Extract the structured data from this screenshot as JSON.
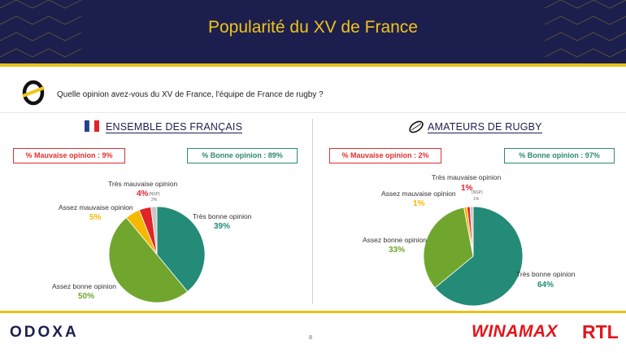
{
  "title": "Popularité du XV de France",
  "question": "Quelle opinion avez-vous du XV de France, l'équipe de France de rugby ?",
  "footer": {
    "brand": "ODOXA",
    "page": "8",
    "sponsor1": "WINAMAX",
    "sponsor2": "RTL"
  },
  "colors": {
    "navy": "#1c1f4d",
    "gold": "#e8c21a",
    "tres_bonne": "#238b77",
    "assez_bonne": "#70a62e",
    "assez_mauvaise": "#f6b800",
    "tres_mauvaise": "#e1242a",
    "nsp": "#c8c8c8"
  },
  "chart_data": [
    {
      "type": "pie",
      "title": "ENSEMBLE DES FRANÇAIS",
      "summary": {
        "mauvaise": "% Mauvaise opinion : 9%",
        "bonne": "% Bonne opinion : 89%"
      },
      "slices": [
        {
          "label": "Très bonne opinion",
          "value": 39,
          "display": "39%"
        },
        {
          "label": "Assez bonne opinion",
          "value": 50,
          "display": "50%"
        },
        {
          "label": "Assez mauvaise opinion",
          "value": 5,
          "display": "5%"
        },
        {
          "label": "Très mauvaise opinion",
          "value": 4,
          "display": "4%"
        },
        {
          "label": "(NSP)",
          "value": 2,
          "display": "2%"
        }
      ]
    },
    {
      "type": "pie",
      "title": "AMATEURS DE RUGBY",
      "summary": {
        "mauvaise": "% Mauvaise opinion : 2%",
        "bonne": "% Bonne opinion : 97%"
      },
      "slices": [
        {
          "label": "Très bonne opinion",
          "value": 64,
          "display": "64%"
        },
        {
          "label": "Assez bonne opinion",
          "value": 33,
          "display": "33%"
        },
        {
          "label": "Assez mauvaise opinion",
          "value": 1,
          "display": "1%"
        },
        {
          "label": "Très mauvaise opinion",
          "value": 1,
          "display": "1%"
        },
        {
          "label": "(NSP)",
          "value": 1,
          "display": "1%"
        }
      ]
    }
  ]
}
